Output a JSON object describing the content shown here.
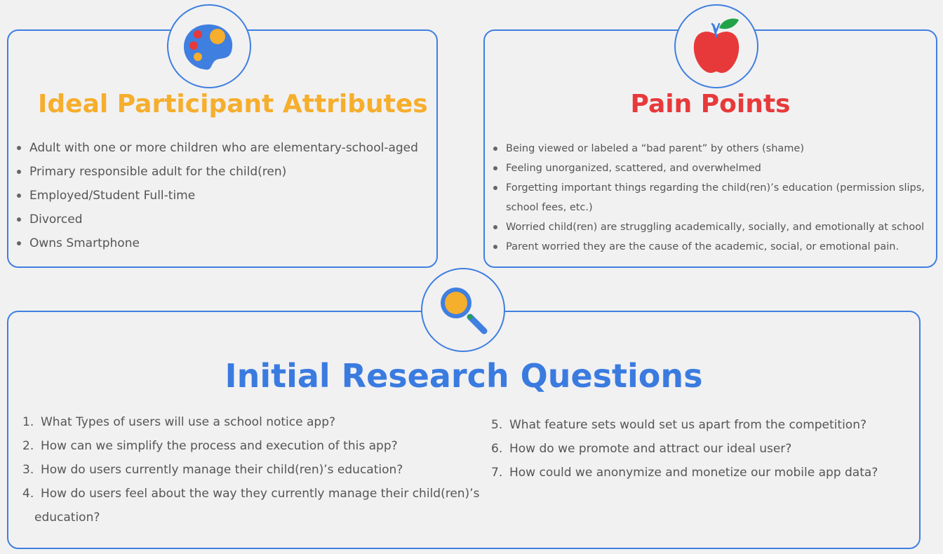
{
  "attributes": {
    "title": "Ideal Participant Attributes",
    "items": [
      "Adult with one or more children who are elementary-school-aged",
      "Primary responsible adult for the child(ren)",
      "Employed/Student Full-time",
      "Divorced",
      "Owns Smartphone"
    ]
  },
  "pain_points": {
    "title": "Pain Points",
    "items": [
      "Being viewed or labeled a “bad parent” by others (shame)",
      "Feeling unorganized, scattered, and overwhelmed",
      "Forgetting important things regarding the child(ren)’s education (permission slips,",
      "school fees, etc.)",
      "Worried child(ren) are struggling academically, socially, and emotionally at school",
      "Parent worried they are the cause of the academic, social, or emotional pain."
    ]
  },
  "questions": {
    "title": "Initial Research Questions",
    "items": [
      {
        "num": "1.",
        "text": "What Types of users will use a school notice app?"
      },
      {
        "num": "2.",
        "text": "How can we simplify the process and execution of this app?"
      },
      {
        "num": "3.",
        "text": "How do users currently manage their child(ren)’s education?"
      },
      {
        "num": "4.",
        "text": "How do users feel about the way they currently manage their child(ren)’s"
      },
      {
        "num": "",
        "text": "education?"
      },
      {
        "num": "5.",
        "text": "What feature sets would set us apart from the competition?"
      },
      {
        "num": "6.",
        "text": "How do we promote and attract our ideal user?"
      },
      {
        "num": "7.",
        "text": "How could we anonymize and monetize our mobile app data?"
      }
    ]
  },
  "icons": {
    "attributes": "palette-icon",
    "pain_points": "apple-icon",
    "questions": "magnifier-icon"
  },
  "colors": {
    "border": "#3f7fe0",
    "attributes_title": "#f6ae2d",
    "pain_title": "#e8393a",
    "questions_title": "#3a7be0"
  }
}
